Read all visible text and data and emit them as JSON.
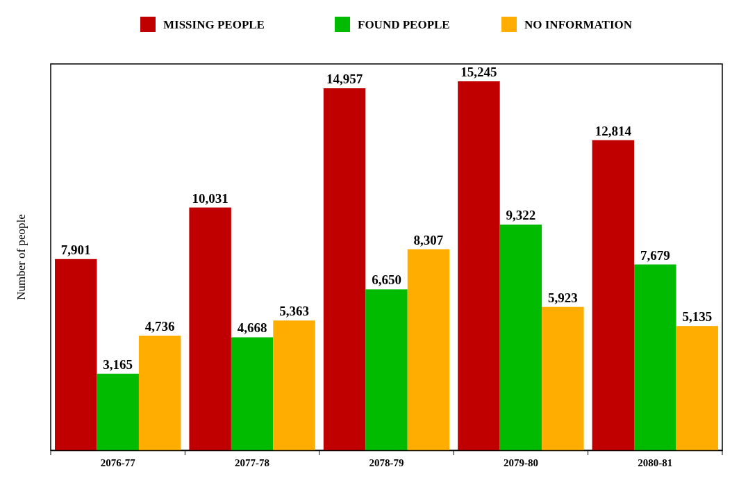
{
  "chart_data": {
    "type": "bar",
    "ylabel": "Number of people",
    "categories": [
      "2076-77",
      "2077-78",
      "2078-79",
      "2079-80",
      "2080-81"
    ],
    "series": [
      {
        "name": "MISSING PEOPLE",
        "color": "#c00000",
        "values": [
          7901,
          10031,
          14957,
          15245,
          12814
        ],
        "value_labels": [
          "7,901",
          "10,031",
          "14,957",
          "15,245",
          "12,814"
        ]
      },
      {
        "name": "FOUND PEOPLE",
        "color": "#00bb00",
        "values": [
          3165,
          4668,
          6650,
          9322,
          7679
        ],
        "value_labels": [
          "3,165",
          "4,668",
          "6,650",
          "9,322",
          "7,679"
        ]
      },
      {
        "name": "NO INFORMATION",
        "color": "#ffad00",
        "values": [
          4736,
          5363,
          8307,
          5923,
          5135
        ],
        "value_labels": [
          "4,736",
          "5,363",
          "8,307",
          "5,923",
          "5,135"
        ]
      }
    ],
    "legend": "top",
    "tick_labels": "x",
    "grid": false
  }
}
